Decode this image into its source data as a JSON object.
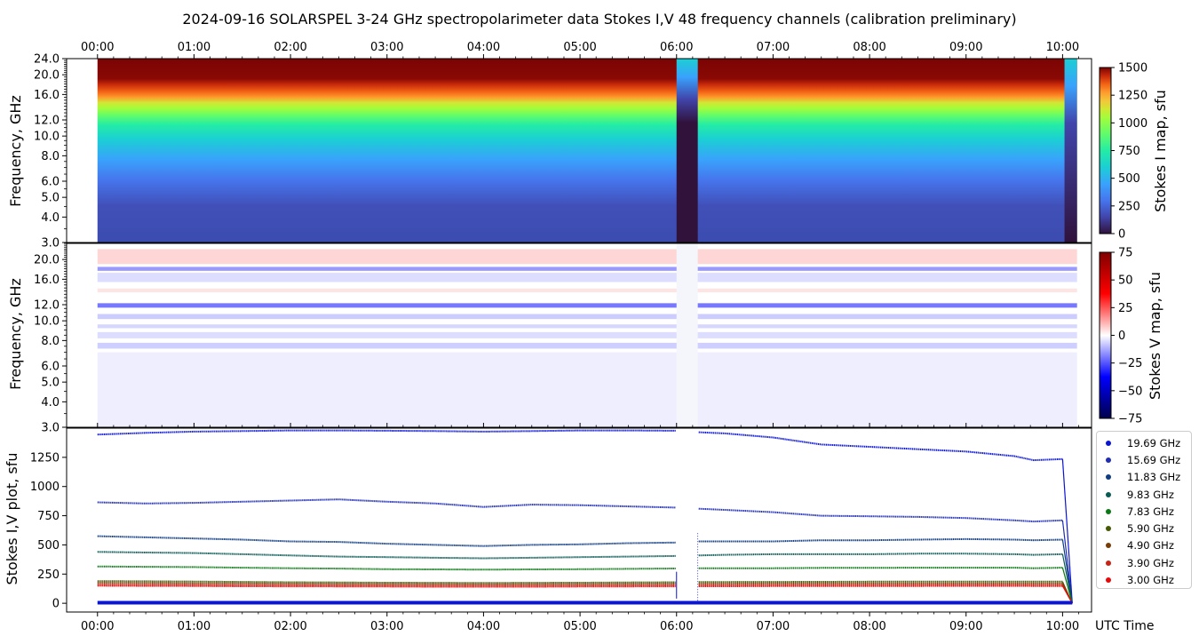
{
  "chart_data": [
    {
      "type": "heatmap",
      "title": "2024-09-16  SOLARSPEL  3-24 GHz spectropolarimeter data   Stokes I,V   48 frequency channels   (calibration preliminary)",
      "ylabel": "Frequency, GHz",
      "yticks": [
        "3.0",
        "4.0",
        "5.0",
        "6.0",
        "8.0",
        "10.0",
        "12.0",
        "16.0",
        "20.0",
        "24.0"
      ],
      "ytick_values": [
        3,
        4,
        5,
        6,
        8,
        10,
        12,
        16,
        20,
        24
      ],
      "xticks": [
        "00:00",
        "01:00",
        "02:00",
        "03:00",
        "04:00",
        "05:00",
        "06:00",
        "07:00",
        "08:00",
        "09:00",
        "10:00"
      ],
      "ylim": [
        3,
        24
      ],
      "xlim_hours": [
        -0.32,
        10.3
      ],
      "data_start_hours": 0,
      "data_end_hours": 10.15,
      "data_gap_hours": [
        6.0,
        6.22
      ],
      "colorbar": {
        "label": "Stokes I map, sfu",
        "ticks": [
          "0",
          "250",
          "500",
          "750",
          "1000",
          "1250",
          "1500"
        ],
        "range": [
          0,
          1500
        ],
        "colormap": "turbo"
      },
      "description_values": {
        "low_freq_sfu": 150,
        "mid_freq_sfu": 450,
        "high_freq_sfu": 1450
      }
    },
    {
      "type": "heatmap",
      "ylabel": "Frequency, GHz",
      "yticks": [
        "3.0",
        "4.0",
        "5.0",
        "6.0",
        "8.0",
        "10.0",
        "12.0",
        "16.0",
        "20.0"
      ],
      "ytick_values": [
        3,
        4,
        5,
        6,
        8,
        10,
        12,
        16,
        20
      ],
      "xticks": [],
      "ylim": [
        3,
        24
      ],
      "colorbar": {
        "label": "Stokes V map, sfu",
        "ticks": [
          "75",
          "50",
          "25",
          "0",
          "−25",
          "−50",
          "−75"
        ],
        "range": [
          -75,
          75
        ],
        "colormap": "seismic"
      },
      "bands": [
        {
          "freq_lo": 19.0,
          "freq_hi": 22.5,
          "v": 12
        },
        {
          "freq_lo": 17.6,
          "freq_hi": 18.4,
          "v": -30
        },
        {
          "freq_lo": 15.5,
          "freq_hi": 17.2,
          "v": -10
        },
        {
          "freq_lo": 13.8,
          "freq_hi": 14.4,
          "v": 8
        },
        {
          "freq_lo": 11.6,
          "freq_hi": 12.2,
          "v": -40
        },
        {
          "freq_lo": 10.2,
          "freq_hi": 10.8,
          "v": -15
        },
        {
          "freq_lo": 9.2,
          "freq_hi": 9.6,
          "v": -12
        },
        {
          "freq_lo": 8.2,
          "freq_hi": 8.8,
          "v": -10
        },
        {
          "freq_lo": 7.3,
          "freq_hi": 7.8,
          "v": -14
        },
        {
          "freq_lo": 3.0,
          "freq_hi": 7.0,
          "v": -5
        }
      ]
    },
    {
      "type": "scatter",
      "ylabel": "Stokes I,V plot, sfu",
      "xlabel": "UTC Time",
      "yticks": [
        "0",
        "250",
        "500",
        "750",
        "1000",
        "1250"
      ],
      "ytick_values": [
        0,
        250,
        500,
        750,
        1000,
        1250
      ],
      "ylim": [
        -75,
        1500
      ],
      "xticks": [
        "00:00",
        "01:00",
        "02:00",
        "03:00",
        "04:00",
        "05:00",
        "06:00",
        "07:00",
        "08:00",
        "09:00",
        "10:00"
      ],
      "x_hours": [
        0,
        0.5,
        1,
        1.5,
        2,
        2.5,
        3,
        3.5,
        4,
        4.5,
        5,
        5.5,
        5.99,
        6.23,
        6.5,
        7,
        7.5,
        8,
        8.5,
        9,
        9.5,
        9.7,
        10.0
      ],
      "series": [
        {
          "name": "19.69 GHz",
          "color": "#0a14d2",
          "values": [
            1445,
            1460,
            1470,
            1475,
            1480,
            1480,
            1478,
            1475,
            1470,
            1475,
            1480,
            1480,
            1478,
            1465,
            1455,
            1420,
            1360,
            1340,
            1320,
            1300,
            1260,
            1225,
            1235
          ]
        },
        {
          "name": "15.69 GHz",
          "color": "#1e2db4",
          "values": [
            865,
            855,
            860,
            870,
            880,
            890,
            870,
            855,
            825,
            845,
            840,
            830,
            820,
            810,
            800,
            780,
            750,
            745,
            740,
            730,
            710,
            700,
            710
          ]
        },
        {
          "name": "11.83 GHz",
          "color": "#0f3c82",
          "values": [
            575,
            565,
            555,
            545,
            530,
            525,
            510,
            500,
            490,
            500,
            505,
            515,
            520,
            530,
            530,
            530,
            540,
            540,
            545,
            550,
            545,
            540,
            545
          ]
        },
        {
          "name": "9.83 GHz",
          "color": "#0a5a55",
          "values": [
            440,
            435,
            430,
            420,
            410,
            400,
            395,
            390,
            385,
            390,
            395,
            400,
            405,
            410,
            415,
            420,
            420,
            420,
            425,
            425,
            420,
            415,
            420
          ]
        },
        {
          "name": "7.83 GHz",
          "color": "#0a7814",
          "values": [
            315,
            312,
            310,
            305,
            300,
            297,
            292,
            290,
            288,
            290,
            292,
            295,
            298,
            300,
            300,
            300,
            303,
            303,
            305,
            305,
            305,
            300,
            305
          ]
        },
        {
          "name": "5.90 GHz",
          "color": "#465a05",
          "values": [
            190,
            188,
            186,
            183,
            180,
            178,
            176,
            175,
            174,
            175,
            176,
            178,
            180,
            182,
            182,
            183,
            184,
            185,
            186,
            186,
            186,
            185,
            185
          ]
        },
        {
          "name": "4.90 GHz",
          "color": "#783c05",
          "values": [
            175,
            173,
            171,
            169,
            167,
            165,
            164,
            163,
            162,
            163,
            164,
            165,
            166,
            168,
            168,
            169,
            170,
            171,
            171,
            171,
            171,
            170,
            170
          ]
        },
        {
          "name": "3.90 GHz",
          "color": "#c82314",
          "values": [
            160,
            158,
            157,
            155,
            154,
            152,
            151,
            150,
            150,
            150,
            151,
            152,
            153,
            155,
            155,
            156,
            157,
            157,
            158,
            158,
            158,
            157,
            157
          ]
        },
        {
          "name": "3.00 GHz",
          "color": "#e60a0a",
          "values": [
            150,
            149,
            148,
            146,
            145,
            144,
            143,
            142,
            142,
            142,
            143,
            144,
            145,
            146,
            146,
            147,
            148,
            148,
            148,
            149,
            149,
            148,
            148
          ]
        }
      ]
    }
  ]
}
